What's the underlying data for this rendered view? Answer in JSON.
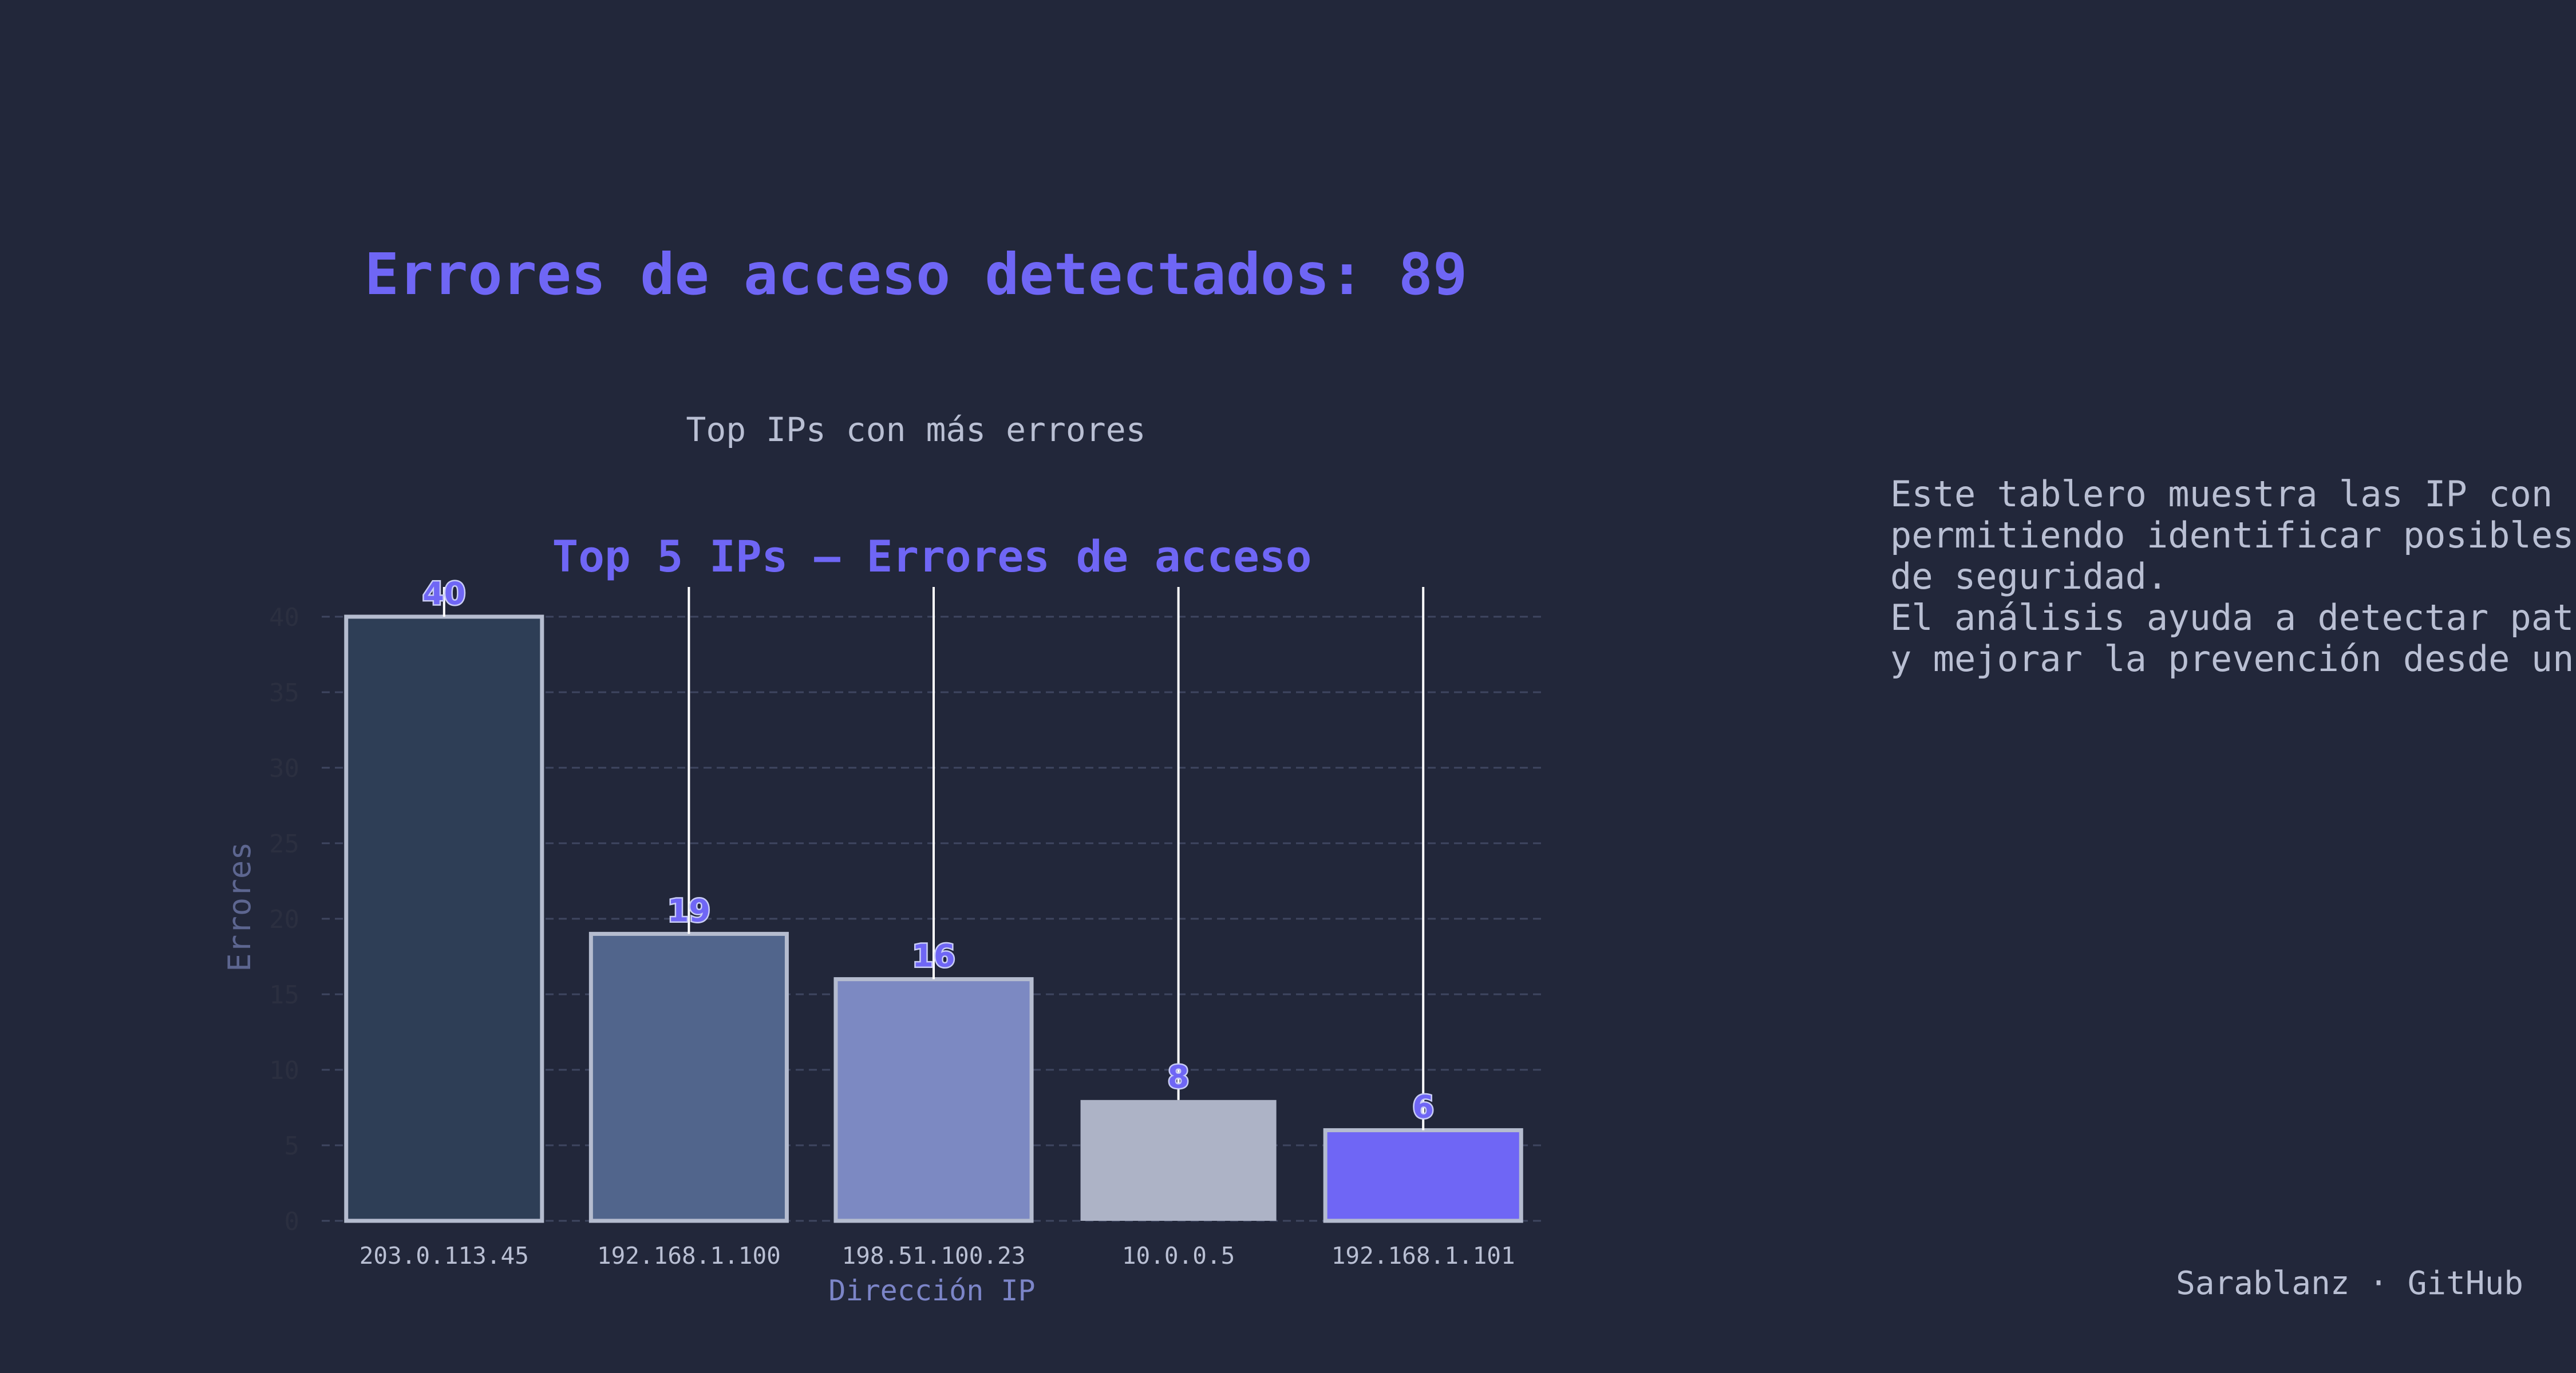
{
  "header": {
    "headline": "Errores de acceso detectados: 89",
    "subtitle": "Top IPs con más errores"
  },
  "description": {
    "lines": [
      "Este tablero muestra las IP con",
      "permitiendo identificar posibles",
      "de seguridad.",
      "El análisis ayuda a detectar pat",
      "y mejorar la prevención desde un"
    ]
  },
  "footer": {
    "text": "Sarablanz · GitHub"
  },
  "colors": {
    "background": "#22273a",
    "accent": "#6f66f5",
    "text": "#b9bfd3",
    "grid": "#3f4660"
  },
  "chart_data": {
    "type": "bar",
    "title": "Top 5 IPs — Errores de acceso",
    "xlabel": "Dirección IP",
    "ylabel": "Errores",
    "categories": [
      "203.0.113.45",
      "192.168.1.100",
      "198.51.100.23",
      "10.0.0.5",
      "192.168.1.101"
    ],
    "values": [
      40,
      19,
      16,
      8,
      6
    ],
    "bar_colors": [
      "#2e3e56",
      "#51658c",
      "#7c89c2",
      "#adb3c6",
      "#6f66f5"
    ],
    "bar_outlines": [
      true,
      true,
      true,
      false,
      true
    ],
    "y_ticks": [
      0,
      5,
      10,
      15,
      20,
      25,
      30,
      35,
      40
    ],
    "ylim": [
      0,
      40
    ],
    "grid": true,
    "data_labels": true
  }
}
